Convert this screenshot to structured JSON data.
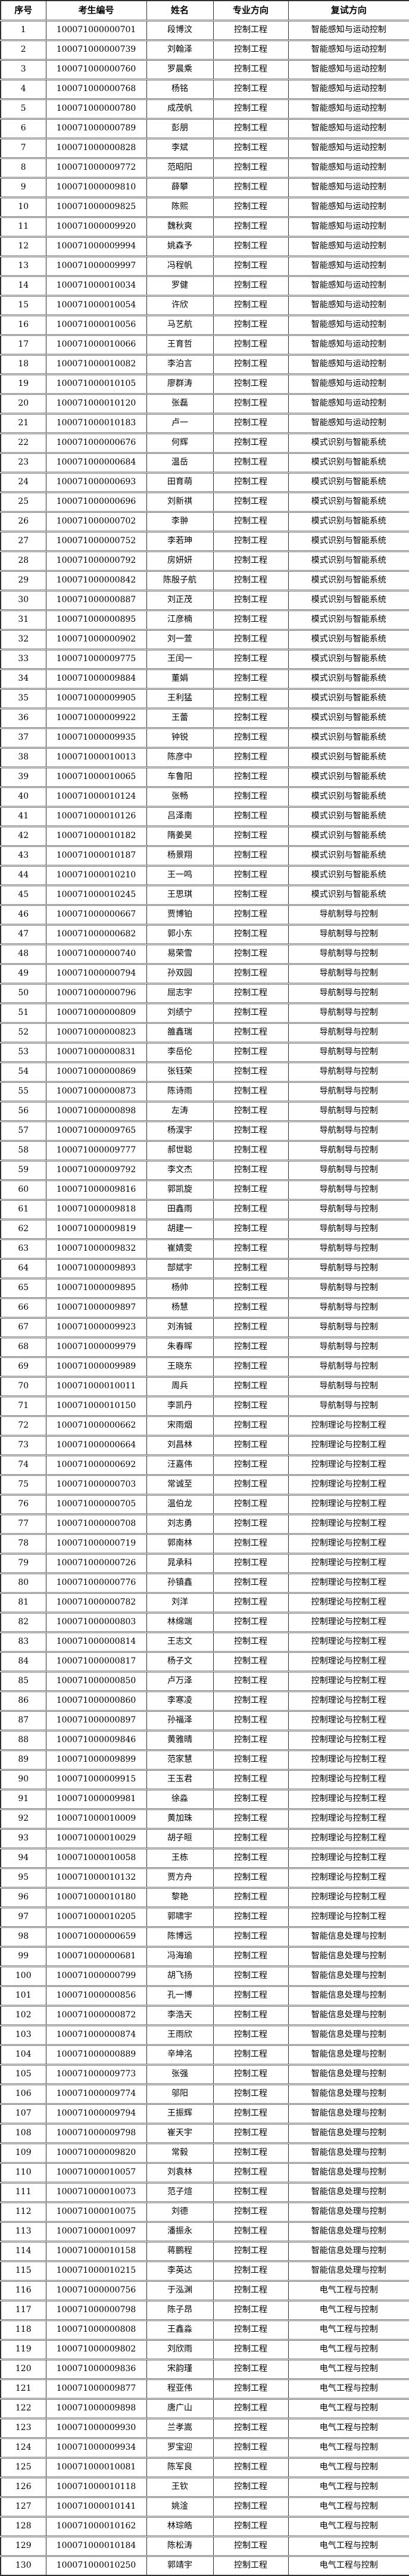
{
  "table": {
    "columns": [
      "序号",
      "考生编号",
      "姓名",
      "专业方向",
      "复试方向"
    ],
    "directions": {
      "colors_note": "plain black on white, no status colors",
      "groups": [
        "智能感知与运动控制",
        "模式识别与智能系统",
        "导航制导与控制",
        "控制理论与控制工程",
        "智能信息处理与控制",
        "电气工程与控制"
      ]
    },
    "rows": [
      [
        "1",
        "100071000000701",
        "段博汶",
        "控制工程",
        "智能感知与运动控制"
      ],
      [
        "2",
        "100071000000739",
        "刘翰泽",
        "控制工程",
        "智能感知与运动控制"
      ],
      [
        "3",
        "100071000000760",
        "罗晨乘",
        "控制工程",
        "智能感知与运动控制"
      ],
      [
        "4",
        "100071000000768",
        "杨铭",
        "控制工程",
        "智能感知与运动控制"
      ],
      [
        "5",
        "100071000000780",
        "成茂帆",
        "控制工程",
        "智能感知与运动控制"
      ],
      [
        "6",
        "100071000000789",
        "彭朋",
        "控制工程",
        "智能感知与运动控制"
      ],
      [
        "7",
        "100071000000828",
        "李斌",
        "控制工程",
        "智能感知与运动控制"
      ],
      [
        "8",
        "100071000009772",
        "范昭阳",
        "控制工程",
        "智能感知与运动控制"
      ],
      [
        "9",
        "100071000009810",
        "薛攀",
        "控制工程",
        "智能感知与运动控制"
      ],
      [
        "10",
        "100071000009825",
        "陈熙",
        "控制工程",
        "智能感知与运动控制"
      ],
      [
        "11",
        "100071000009920",
        "魏秋爽",
        "控制工程",
        "智能感知与运动控制"
      ],
      [
        "12",
        "100071000009994",
        "姚森予",
        "控制工程",
        "智能感知与运动控制"
      ],
      [
        "13",
        "100071000009997",
        "冯程帆",
        "控制工程",
        "智能感知与运动控制"
      ],
      [
        "14",
        "100071000010034",
        "罗健",
        "控制工程",
        "智能感知与运动控制"
      ],
      [
        "15",
        "100071000010054",
        "许欣",
        "控制工程",
        "智能感知与运动控制"
      ],
      [
        "16",
        "100071000010056",
        "马艺航",
        "控制工程",
        "智能感知与运动控制"
      ],
      [
        "17",
        "100071000010066",
        "王育哲",
        "控制工程",
        "智能感知与运动控制"
      ],
      [
        "18",
        "100071000010082",
        "李泊言",
        "控制工程",
        "智能感知与运动控制"
      ],
      [
        "19",
        "100071000010105",
        "廖群涛",
        "控制工程",
        "智能感知与运动控制"
      ],
      [
        "20",
        "100071000010120",
        "张磊",
        "控制工程",
        "智能感知与运动控制"
      ],
      [
        "21",
        "100071000010183",
        "卢一",
        "控制工程",
        "智能感知与运动控制"
      ],
      [
        "22",
        "100071000000676",
        "何辉",
        "控制工程",
        "模式识别与智能系统"
      ],
      [
        "23",
        "100071000000684",
        "温岳",
        "控制工程",
        "模式识别与智能系统"
      ],
      [
        "24",
        "100071000000693",
        "田育萌",
        "控制工程",
        "模式识别与智能系统"
      ],
      [
        "25",
        "100071000000696",
        "刘新祺",
        "控制工程",
        "模式识别与智能系统"
      ],
      [
        "26",
        "100071000000702",
        "李翀",
        "控制工程",
        "模式识别与智能系统"
      ],
      [
        "27",
        "100071000000752",
        "李若珅",
        "控制工程",
        "模式识别与智能系统"
      ],
      [
        "28",
        "100071000000792",
        "房妍妍",
        "控制工程",
        "模式识别与智能系统"
      ],
      [
        "29",
        "100071000000842",
        "陈殷子航",
        "控制工程",
        "模式识别与智能系统"
      ],
      [
        "30",
        "100071000000887",
        "刘正茂",
        "控制工程",
        "模式识别与智能系统"
      ],
      [
        "31",
        "100071000000895",
        "江彦楠",
        "控制工程",
        "模式识别与智能系统"
      ],
      [
        "32",
        "100071000000902",
        "刘一萱",
        "控制工程",
        "模式识别与智能系统"
      ],
      [
        "33",
        "100071000009775",
        "王闰一",
        "控制工程",
        "模式识别与智能系统"
      ],
      [
        "34",
        "100071000009884",
        "董娟",
        "控制工程",
        "模式识别与智能系统"
      ],
      [
        "35",
        "100071000009905",
        "王利猛",
        "控制工程",
        "模式识别与智能系统"
      ],
      [
        "36",
        "100071000009922",
        "王蕾",
        "控制工程",
        "模式识别与智能系统"
      ],
      [
        "37",
        "100071000009935",
        "钟锐",
        "控制工程",
        "模式识别与智能系统"
      ],
      [
        "38",
        "100071000010013",
        "陈彦中",
        "控制工程",
        "模式识别与智能系统"
      ],
      [
        "39",
        "100071000010065",
        "车鲁阳",
        "控制工程",
        "模式识别与智能系统"
      ],
      [
        "40",
        "100071000010124",
        "张畅",
        "控制工程",
        "模式识别与智能系统"
      ],
      [
        "41",
        "100071000010126",
        "吕泽南",
        "控制工程",
        "模式识别与智能系统"
      ],
      [
        "42",
        "100071000010182",
        "隋姜昊",
        "控制工程",
        "模式识别与智能系统"
      ],
      [
        "43",
        "100071000010187",
        "杨景翔",
        "控制工程",
        "模式识别与智能系统"
      ],
      [
        "44",
        "100071000010210",
        "王一鸣",
        "控制工程",
        "模式识别与智能系统"
      ],
      [
        "45",
        "100071000010245",
        "王思琪",
        "控制工程",
        "模式识别与智能系统"
      ],
      [
        "46",
        "100071000000667",
        "贾博铂",
        "控制工程",
        "导航制导与控制"
      ],
      [
        "47",
        "100071000000682",
        "郭小东",
        "控制工程",
        "导航制导与控制"
      ],
      [
        "48",
        "100071000000740",
        "易荣雪",
        "控制工程",
        "导航制导与控制"
      ],
      [
        "49",
        "100071000000794",
        "孙双园",
        "控制工程",
        "导航制导与控制"
      ],
      [
        "50",
        "100071000000796",
        "屈志宇",
        "控制工程",
        "导航制导与控制"
      ],
      [
        "51",
        "100071000000809",
        "刘绩宁",
        "控制工程",
        "导航制导与控制"
      ],
      [
        "52",
        "100071000000823",
        "雒鑫瑞",
        "控制工程",
        "导航制导与控制"
      ],
      [
        "53",
        "100071000000831",
        "李岳伦",
        "控制工程",
        "导航制导与控制"
      ],
      [
        "54",
        "100071000000869",
        "张钰荣",
        "控制工程",
        "导航制导与控制"
      ],
      [
        "55",
        "100071000000873",
        "陈诗雨",
        "控制工程",
        "导航制导与控制"
      ],
      [
        "56",
        "100071000000898",
        "左涛",
        "控制工程",
        "导航制导与控制"
      ],
      [
        "57",
        "100071000009765",
        "杨淏宇",
        "控制工程",
        "导航制导与控制"
      ],
      [
        "58",
        "100071000009777",
        "郝世聪",
        "控制工程",
        "导航制导与控制"
      ],
      [
        "59",
        "100071000009792",
        "李文杰",
        "控制工程",
        "导航制导与控制"
      ],
      [
        "60",
        "100071000009816",
        "郭凯旋",
        "控制工程",
        "导航制导与控制"
      ],
      [
        "61",
        "100071000009818",
        "田鑫雨",
        "控制工程",
        "导航制导与控制"
      ],
      [
        "62",
        "100071000009819",
        "胡建一",
        "控制工程",
        "导航制导与控制"
      ],
      [
        "63",
        "100071000009832",
        "崔婧雯",
        "控制工程",
        "导航制导与控制"
      ],
      [
        "64",
        "100071000009893",
        "郜斌宇",
        "控制工程",
        "导航制导与控制"
      ],
      [
        "65",
        "100071000009895",
        "杨帅",
        "控制工程",
        "导航制导与控制"
      ],
      [
        "66",
        "100071000009897",
        "杨慧",
        "控制工程",
        "导航制导与控制"
      ],
      [
        "67",
        "100071000009923",
        "刘洧铖",
        "控制工程",
        "导航制导与控制"
      ],
      [
        "68",
        "100071000009979",
        "朱春晖",
        "控制工程",
        "导航制导与控制"
      ],
      [
        "69",
        "100071000009989",
        "王晓东",
        "控制工程",
        "导航制导与控制"
      ],
      [
        "70",
        "100071000010011",
        "周兵",
        "控制工程",
        "导航制导与控制"
      ],
      [
        "71",
        "100071000010150",
        "李凯丹",
        "控制工程",
        "导航制导与控制"
      ],
      [
        "72",
        "100071000000662",
        "宋雨烟",
        "控制工程",
        "控制理论与控制工程"
      ],
      [
        "73",
        "100071000000664",
        "刘昌林",
        "控制工程",
        "控制理论与控制工程"
      ],
      [
        "74",
        "100071000000692",
        "汪嘉伟",
        "控制工程",
        "控制理论与控制工程"
      ],
      [
        "75",
        "100071000000703",
        "常诚至",
        "控制工程",
        "控制理论与控制工程"
      ],
      [
        "76",
        "100071000000705",
        "温伯龙",
        "控制工程",
        "控制理论与控制工程"
      ],
      [
        "77",
        "100071000000708",
        "刘志勇",
        "控制工程",
        "控制理论与控制工程"
      ],
      [
        "78",
        "100071000000719",
        "郭南林",
        "控制工程",
        "控制理论与控制工程"
      ],
      [
        "79",
        "100071000000726",
        "晁承科",
        "控制工程",
        "控制理论与控制工程"
      ],
      [
        "80",
        "100071000000776",
        "孙镇鑫",
        "控制工程",
        "控制理论与控制工程"
      ],
      [
        "81",
        "100071000000782",
        "刘洋",
        "控制工程",
        "控制理论与控制工程"
      ],
      [
        "82",
        "100071000000803",
        "林绵端",
        "控制工程",
        "控制理论与控制工程"
      ],
      [
        "83",
        "100071000000814",
        "王志文",
        "控制工程",
        "控制理论与控制工程"
      ],
      [
        "84",
        "100071000000817",
        "杨子文",
        "控制工程",
        "控制理论与控制工程"
      ],
      [
        "85",
        "100071000000850",
        "卢万泽",
        "控制工程",
        "控制理论与控制工程"
      ],
      [
        "86",
        "100071000000860",
        "李寒凌",
        "控制工程",
        "控制理论与控制工程"
      ],
      [
        "87",
        "100071000000897",
        "孙福泽",
        "控制工程",
        "控制理论与控制工程"
      ],
      [
        "88",
        "100071000009846",
        "黄雅晴",
        "控制工程",
        "控制理论与控制工程"
      ],
      [
        "89",
        "100071000009899",
        "范家慧",
        "控制工程",
        "控制理论与控制工程"
      ],
      [
        "90",
        "100071000009915",
        "王玉君",
        "控制工程",
        "控制理论与控制工程"
      ],
      [
        "91",
        "100071000009981",
        "徐淼",
        "控制工程",
        "控制理论与控制工程"
      ],
      [
        "92",
        "100071000010009",
        "黄加珠",
        "控制工程",
        "控制理论与控制工程"
      ],
      [
        "93",
        "100071000010029",
        "胡子晅",
        "控制工程",
        "控制理论与控制工程"
      ],
      [
        "94",
        "100071000010058",
        "王栋",
        "控制工程",
        "控制理论与控制工程"
      ],
      [
        "95",
        "100071000010132",
        "贾方舟",
        "控制工程",
        "控制理论与控制工程"
      ],
      [
        "96",
        "100071000010180",
        "黎艳",
        "控制工程",
        "控制理论与控制工程"
      ],
      [
        "97",
        "100071000010205",
        "郭啸宇",
        "控制工程",
        "控制理论与控制工程"
      ],
      [
        "98",
        "100071000000659",
        "陈博远",
        "控制工程",
        "智能信息处理与控制"
      ],
      [
        "99",
        "100071000000681",
        "冯海瑜",
        "控制工程",
        "智能信息处理与控制"
      ],
      [
        "100",
        "100071000000799",
        "胡飞扬",
        "控制工程",
        "智能信息处理与控制"
      ],
      [
        "101",
        "100071000000856",
        "孔一博",
        "控制工程",
        "智能信息处理与控制"
      ],
      [
        "102",
        "100071000000872",
        "李浩天",
        "控制工程",
        "智能信息处理与控制"
      ],
      [
        "103",
        "100071000000874",
        "王雨欣",
        "控制工程",
        "智能信息处理与控制"
      ],
      [
        "104",
        "100071000000889",
        "辛坤洺",
        "控制工程",
        "智能信息处理与控制"
      ],
      [
        "105",
        "100071000009773",
        "张强",
        "控制工程",
        "智能信息处理与控制"
      ],
      [
        "106",
        "100071000009774",
        "邬阳",
        "控制工程",
        "智能信息处理与控制"
      ],
      [
        "107",
        "100071000009794",
        "王振辉",
        "控制工程",
        "智能信息处理与控制"
      ],
      [
        "108",
        "100071000009798",
        "崔天宇",
        "控制工程",
        "智能信息处理与控制"
      ],
      [
        "109",
        "100071000009820",
        "常毅",
        "控制工程",
        "智能信息处理与控制"
      ],
      [
        "110",
        "100071000010057",
        "刘袁林",
        "控制工程",
        "智能信息处理与控制"
      ],
      [
        "111",
        "100071000010073",
        "范子煊",
        "控制工程",
        "智能信息处理与控制"
      ],
      [
        "112",
        "100071000010075",
        "刘德",
        "控制工程",
        "智能信息处理与控制"
      ],
      [
        "113",
        "100071000010097",
        "潘振永",
        "控制工程",
        "智能信息处理与控制"
      ],
      [
        "114",
        "100071000010158",
        "蒋鹏程",
        "控制工程",
        "智能信息处理与控制"
      ],
      [
        "115",
        "100071000010215",
        "李英达",
        "控制工程",
        "智能信息处理与控制"
      ],
      [
        "116",
        "100071000000756",
        "于泓渊",
        "控制工程",
        "电气工程与控制"
      ],
      [
        "117",
        "100071000000798",
        "陈子昂",
        "控制工程",
        "电气工程与控制"
      ],
      [
        "118",
        "100071000000808",
        "王鑫淼",
        "控制工程",
        "电气工程与控制"
      ],
      [
        "119",
        "100071000009802",
        "刘欣雨",
        "控制工程",
        "电气工程与控制"
      ],
      [
        "120",
        "100071000009836",
        "宋韵瑾",
        "控制工程",
        "电气工程与控制"
      ],
      [
        "121",
        "100071000009877",
        "程亚伟",
        "控制工程",
        "电气工程与控制"
      ],
      [
        "122",
        "100071000009898",
        "唐广山",
        "控制工程",
        "电气工程与控制"
      ],
      [
        "123",
        "100071000009930",
        "兰孝嵩",
        "控制工程",
        "电气工程与控制"
      ],
      [
        "124",
        "100071000009934",
        "罗宝迎",
        "控制工程",
        "电气工程与控制"
      ],
      [
        "125",
        "100071000010081",
        "陈军良",
        "控制工程",
        "电气工程与控制"
      ],
      [
        "126",
        "100071000010118",
        "王钦",
        "控制工程",
        "电气工程与控制"
      ],
      [
        "127",
        "100071000010141",
        "姚淦",
        "控制工程",
        "电气工程与控制"
      ],
      [
        "128",
        "100071000010162",
        "林琮皓",
        "控制工程",
        "电气工程与控制"
      ],
      [
        "129",
        "100071000010184",
        "陈松涛",
        "控制工程",
        "电气工程与控制"
      ],
      [
        "130",
        "100071000010250",
        "郭靖宇",
        "控制工程",
        "电气工程与控制"
      ]
    ]
  }
}
